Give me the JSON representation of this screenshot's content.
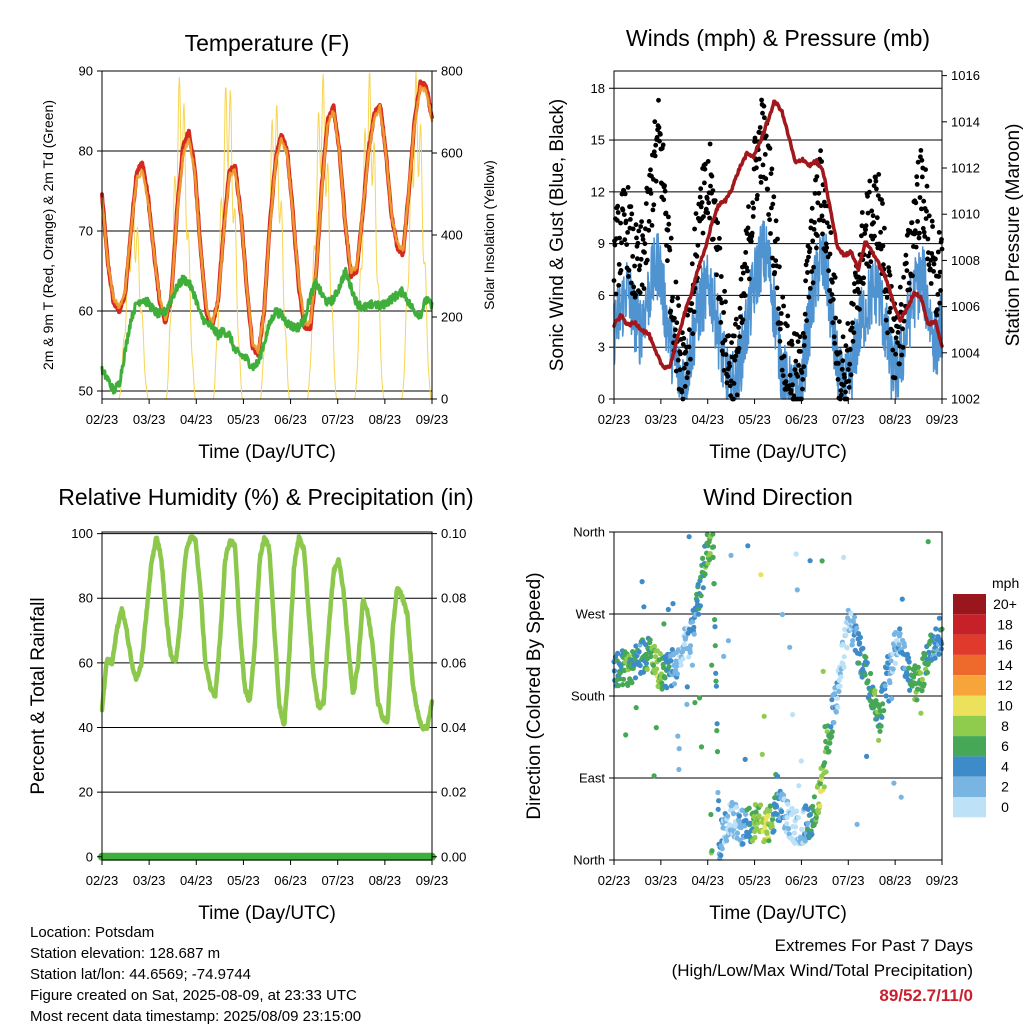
{
  "colors": {
    "temp2m": "#d42a20",
    "temp9m": "#f0a330",
    "dewpoint": "#3fae3a",
    "solar": "#f7d34a",
    "gust": "#000000",
    "wind": "#4f93d0",
    "pressure": "#a1171b",
    "humidity": "#8cc84b",
    "rainfall": "#3fae3a",
    "extremes": "#c8202e"
  },
  "station_info": {
    "location": "Location: Potsdam",
    "elevation": "Station elevation: 128.687 m",
    "latlon": "Station lat/lon: 44.6569; -74.9744",
    "created": "Figure created on Sat, 2025-08-09, at 23:33 UTC",
    "recent": "Most recent data timestamp: 2025/08/09 23:15:00"
  },
  "extremes": {
    "title": "Extremes For Past 7 Days",
    "subtitle": "(High/Low/Max Wind/Total Precipitation)",
    "values": "89/52.7/11/0"
  },
  "chart_data": [
    {
      "id": "temperature",
      "type": "line",
      "title": "Temperature (F)",
      "xlabel": "Time (Day/UTC)",
      "ylabel": "2m & 9m T (Red, Orange) & 2m Td (Green)",
      "y2label": "Solar Insolation (Yellow)",
      "x_ticks": [
        "02/23",
        "03/23",
        "04/23",
        "05/23",
        "06/23",
        "07/23",
        "08/23",
        "09/23"
      ],
      "ylim": [
        49,
        90
      ],
      "y_ticks": [
        50,
        60,
        70,
        80,
        90
      ],
      "y2lim": [
        0,
        800
      ],
      "y2_ticks": [
        0,
        200,
        400,
        600,
        800
      ],
      "grid": true,
      "series": [
        {
          "key": "t2m",
          "color": "#d42a20",
          "values": [
            74.5,
            66,
            61,
            60,
            62,
            70,
            77.5,
            78.5,
            74,
            67,
            61,
            58.5,
            62,
            73,
            80.5,
            82.5,
            78,
            68,
            60,
            58,
            61,
            70,
            77.5,
            78,
            72,
            63,
            55.5,
            54.5,
            60,
            71,
            79,
            82,
            80,
            72,
            63,
            58,
            58,
            65,
            76,
            84,
            85.5,
            80,
            71,
            64.5,
            65,
            72,
            80,
            84.5,
            86,
            80,
            72,
            68,
            67,
            75,
            84,
            88.5,
            88,
            84
          ]
        },
        {
          "key": "t9m",
          "color": "#f0a330",
          "values": [
            74,
            66,
            61.5,
            60.5,
            62.5,
            70,
            76.5,
            77.5,
            73.5,
            67,
            61.5,
            59,
            62,
            72.5,
            79.5,
            81.5,
            77.5,
            68,
            60.5,
            58.5,
            61,
            69.5,
            77,
            77.5,
            72,
            63,
            56,
            55,
            60,
            70.5,
            78.5,
            81.5,
            79.5,
            72,
            63.5,
            58.5,
            58.5,
            65,
            75.5,
            83.5,
            85,
            80,
            71,
            65,
            65.5,
            72,
            79.5,
            84,
            85.5,
            80,
            72,
            68.5,
            67.5,
            75,
            83.5,
            88,
            87.5,
            84
          ]
        },
        {
          "key": "td",
          "color": "#3fae3a",
          "values": [
            52.5,
            51.5,
            50,
            51,
            55,
            59,
            61,
            61.5,
            61,
            60,
            59.5,
            60,
            61.5,
            63,
            64,
            63.5,
            62,
            59.5,
            58.5,
            58,
            57,
            57.5,
            57,
            55,
            54.5,
            54,
            53,
            53.5,
            56,
            58.5,
            60,
            59.5,
            58.5,
            58,
            58,
            59,
            62,
            63.5,
            62,
            61,
            61.5,
            63,
            65,
            63,
            61,
            60.5,
            60.5,
            61,
            60.5,
            61,
            61.5,
            62,
            62.5,
            61,
            60,
            59.5,
            61.5,
            60.5
          ]
        }
      ],
      "solar": {
        "key": "solar",
        "color": "#f7d34a",
        "peaks": [
          490,
          800,
          800,
          740,
          800,
          800,
          800,
          800
        ]
      }
    },
    {
      "id": "winds",
      "type": "scatter",
      "title": "Winds (mph) & Pressure (mb)",
      "xlabel": "Time (Day/UTC)",
      "ylabel": "Sonic Wind & Gust (Blue, Black)",
      "y2label": "Station Pressure (Maroon)",
      "x_ticks": [
        "02/23",
        "03/23",
        "04/23",
        "05/23",
        "06/23",
        "07/23",
        "08/23",
        "09/23"
      ],
      "ylim": [
        0,
        19
      ],
      "y_ticks": [
        0,
        3,
        6,
        9,
        12,
        15,
        18
      ],
      "y2lim": [
        1002,
        1016.2
      ],
      "y2_ticks": [
        1002,
        1004,
        1006,
        1008,
        1010,
        1012,
        1014,
        1016
      ],
      "grid": true,
      "series": [
        {
          "key": "wind",
          "color": "#4f93d0",
          "values": [
            4,
            5,
            6.5,
            5,
            4,
            5.5,
            7,
            8,
            5,
            3,
            1.5,
            1,
            3,
            5,
            6,
            6.5,
            4.5,
            2,
            0.5,
            1,
            3,
            5,
            7,
            8.5,
            8,
            5,
            2,
            0.5,
            0.3,
            0.3,
            3.5,
            6,
            8,
            7.5,
            4,
            1,
            0.5,
            1.5,
            4,
            5,
            6,
            6.5,
            4.5,
            2,
            1.5,
            3,
            5,
            6.5,
            7,
            5,
            3,
            4.5
          ]
        },
        {
          "key": "gust",
          "color": "#000000",
          "values": [
            8,
            9,
            10,
            7.5,
            7,
            9,
            12.5,
            15,
            11,
            6,
            3,
            2,
            5,
            9,
            11,
            12,
            9,
            4,
            1.5,
            2,
            5,
            9,
            13,
            15,
            13,
            9,
            4,
            2,
            1,
            1,
            6,
            9,
            12,
            10,
            6,
            2,
            1,
            3,
            7,
            9,
            10,
            11,
            8,
            4,
            3,
            5,
            8,
            11,
            12,
            9,
            6,
            8
          ]
        },
        {
          "key": "pressure",
          "color": "#a1171b",
          "values": [
            1005.2,
            1005.6,
            1005.2,
            1005.3,
            1005,
            1004.8,
            1004,
            1003.4,
            1003.4,
            1004.5,
            1005.6,
            1006.5,
            1007.6,
            1008.4,
            1009.6,
            1010.4,
            1010.6,
            1011.2,
            1012,
            1012.6,
            1012.5,
            1013.2,
            1014,
            1014.9,
            1014.5,
            1013.4,
            1012.2,
            1012.4,
            1012.1,
            1012.3,
            1011.8,
            1010.2,
            1008.6,
            1008.2,
            1008.4,
            1007.6,
            1008.8,
            1008.4,
            1007.8,
            1007.2,
            1006.2,
            1005.4,
            1005.9,
            1006.6,
            1006.4,
            1005.2,
            1005.4,
            1004.3
          ]
        }
      ]
    },
    {
      "id": "humidity",
      "type": "line",
      "title": "Relative Humidity (%) & Precipitation (in)",
      "xlabel": "Time (Day/UTC)",
      "ylabel": "Percent & Total Rainfall",
      "x_ticks": [
        "02/23",
        "03/23",
        "04/23",
        "05/23",
        "06/23",
        "07/23",
        "08/23",
        "09/23"
      ],
      "ylim": [
        -1,
        100.5
      ],
      "y_ticks": [
        0,
        20,
        40,
        60,
        80,
        100
      ],
      "y2lim": [
        -0.001,
        0.1005
      ],
      "y2_ticks": [
        "0.00",
        "0.02",
        "0.04",
        "0.06",
        "0.08",
        "0.10"
      ],
      "grid": true,
      "series": [
        {
          "key": "rh",
          "color": "#8cc84b",
          "values": [
            46,
            61,
            60,
            70,
            77,
            70,
            60,
            55,
            60,
            75,
            90,
            99,
            93,
            75,
            62,
            60,
            75,
            94,
            99,
            98,
            82,
            60,
            52,
            50,
            68,
            92,
            98,
            96,
            70,
            52,
            48,
            65,
            92,
            99,
            95,
            70,
            47,
            40,
            62,
            90,
            99,
            95,
            75,
            55,
            46,
            48,
            70,
            88,
            92,
            83,
            65,
            50,
            60,
            80,
            75,
            65,
            48,
            43,
            42,
            70,
            84,
            80,
            75,
            55,
            45,
            40,
            40,
            48
          ]
        },
        {
          "key": "rain",
          "color": "#3fae3a",
          "values": [
            0,
            0
          ]
        }
      ]
    },
    {
      "id": "wind_direction",
      "type": "scatter",
      "title": "Wind Direction",
      "xlabel": "Time (Day/UTC)",
      "ylabel": "Direction (Colored By Speed)",
      "x_ticks": [
        "02/23",
        "03/23",
        "04/23",
        "05/23",
        "06/23",
        "07/23",
        "08/23",
        "09/23"
      ],
      "y_ticks": [
        "North",
        "East",
        "South",
        "West",
        "North"
      ],
      "ylim": [
        0,
        360
      ],
      "grid": true,
      "legend": {
        "title": "mph",
        "labels": [
          "20+",
          "18",
          "16",
          "14",
          "12",
          "10",
          "8",
          "6",
          "4",
          "2",
          "0"
        ],
        "colors": [
          "#98161c",
          "#c62028",
          "#df3a2c",
          "#ee6a2c",
          "#f7a43b",
          "#ece15a",
          "#8fcc4e",
          "#46a857",
          "#3e8bc9",
          "#79b5e3",
          "#bde2f7"
        ]
      },
      "direction_path": [
        205,
        212,
        210,
        215,
        220,
        228,
        225,
        210,
        205,
        208,
        215,
        232,
        240,
        265,
        300,
        340,
        355,
        20,
        32,
        45,
        40,
        35,
        38,
        42,
        40,
        38,
        50,
        60,
        45,
        38,
        35,
        40,
        48,
        65,
        100,
        150,
        180,
        225,
        260,
        245,
        220,
        200,
        175,
        160,
        200,
        225,
        245,
        220,
        200,
        190,
        210,
        225,
        240,
        250
      ]
    }
  ]
}
